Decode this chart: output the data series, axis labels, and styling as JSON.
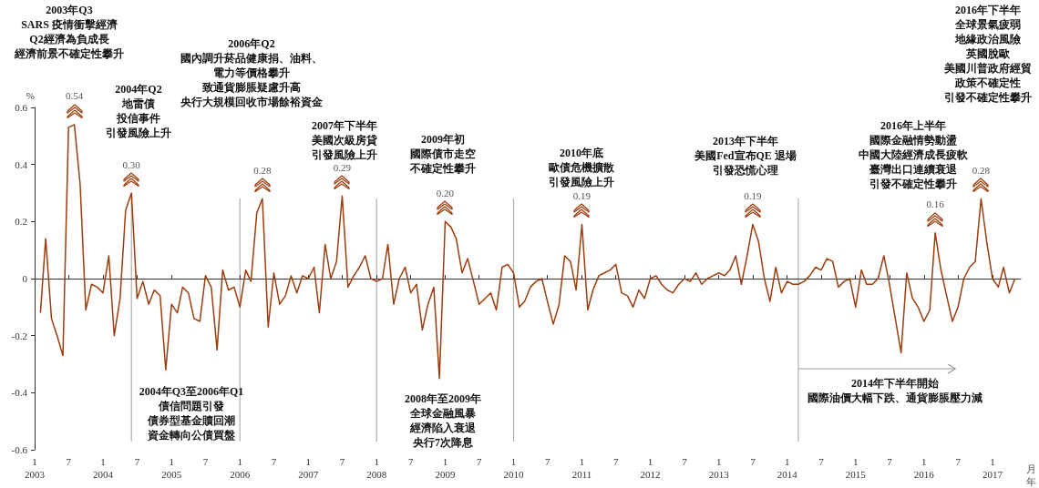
{
  "chart_data": {
    "type": "line",
    "ylabel": "%",
    "xlabel": "月年",
    "x": [
      "2003-02",
      "2003-03",
      "2003-04",
      "2003-05",
      "2003-06",
      "2003-07",
      "2003-08",
      "2003-09",
      "2003-10",
      "2003-11",
      "2003-12",
      "2004-01",
      "2004-02",
      "2004-03",
      "2004-04",
      "2004-05",
      "2004-06",
      "2004-07",
      "2004-08",
      "2004-09",
      "2004-10",
      "2004-11",
      "2004-12",
      "2005-01",
      "2005-02",
      "2005-03",
      "2005-04",
      "2005-05",
      "2005-06",
      "2005-07",
      "2005-08",
      "2005-09",
      "2005-10",
      "2005-11",
      "2005-12",
      "2006-01",
      "2006-02",
      "2006-03",
      "2006-04",
      "2006-05",
      "2006-06",
      "2006-07",
      "2006-08",
      "2006-09",
      "2006-10",
      "2006-11",
      "2006-12",
      "2007-01",
      "2007-02",
      "2007-03",
      "2007-04",
      "2007-05",
      "2007-06",
      "2007-07",
      "2007-08",
      "2007-09",
      "2007-10",
      "2007-11",
      "2007-12",
      "2008-01",
      "2008-02",
      "2008-03",
      "2008-04",
      "2008-05",
      "2008-06",
      "2008-07",
      "2008-08",
      "2008-09",
      "2008-10",
      "2008-11",
      "2008-12",
      "2009-01",
      "2009-02",
      "2009-03",
      "2009-04",
      "2009-05",
      "2009-06",
      "2009-07",
      "2009-08",
      "2009-09",
      "2009-10",
      "2009-11",
      "2009-12",
      "2010-01",
      "2010-02",
      "2010-03",
      "2010-04",
      "2010-05",
      "2010-06",
      "2010-07",
      "2010-08",
      "2010-09",
      "2010-10",
      "2010-11",
      "2010-12",
      "2011-01",
      "2011-02",
      "2011-03",
      "2011-04",
      "2011-05",
      "2011-06",
      "2011-07",
      "2011-08",
      "2011-09",
      "2011-10",
      "2011-11",
      "2011-12",
      "2012-01",
      "2012-02",
      "2012-03",
      "2012-04",
      "2012-05",
      "2012-06",
      "2012-07",
      "2012-08",
      "2012-09",
      "2012-10",
      "2012-11",
      "2012-12",
      "2013-01",
      "2013-02",
      "2013-03",
      "2013-04",
      "2013-05",
      "2013-06",
      "2013-07",
      "2013-08",
      "2013-09",
      "2013-10",
      "2013-11",
      "2013-12",
      "2014-01",
      "2014-02",
      "2014-03",
      "2014-04",
      "2014-05",
      "2014-06",
      "2014-07",
      "2014-08",
      "2014-09",
      "2014-10",
      "2014-11",
      "2014-12",
      "2015-01",
      "2015-02",
      "2015-03",
      "2015-04",
      "2015-05",
      "2015-06",
      "2015-07",
      "2015-08",
      "2015-09",
      "2015-10",
      "2015-11",
      "2015-12",
      "2016-01",
      "2016-02",
      "2016-03",
      "2016-04",
      "2016-05",
      "2016-06",
      "2016-07",
      "2016-08",
      "2016-09",
      "2016-10",
      "2016-11",
      "2016-12",
      "2017-01",
      "2017-02",
      "2017-03",
      "2017-04",
      "2017-05"
    ],
    "series": [
      {
        "color": "#9c3d0e",
        "values": [
          -0.12,
          0.14,
          -0.14,
          -0.2,
          -0.27,
          0.53,
          0.54,
          0.33,
          -0.11,
          -0.02,
          -0.03,
          -0.05,
          0.08,
          -0.2,
          -0.07,
          0.24,
          0.3,
          -0.07,
          -0.01,
          -0.09,
          -0.04,
          -0.06,
          -0.32,
          -0.09,
          -0.12,
          -0.03,
          -0.05,
          -0.14,
          -0.15,
          0.01,
          -0.03,
          -0.25,
          0.03,
          -0.04,
          -0.03,
          -0.1,
          0.03,
          -0.01,
          0.23,
          0.28,
          -0.17,
          0.02,
          -0.09,
          -0.06,
          0.01,
          -0.05,
          0.01,
          0,
          0.04,
          -0.12,
          0.12,
          0,
          0.06,
          0.29,
          -0.03,
          0.01,
          0.04,
          0.08,
          0,
          -0.01,
          0,
          0.12,
          -0.09,
          0,
          0.04,
          -0.05,
          -0.02,
          -0.18,
          -0.09,
          -0.03,
          -0.35,
          0.2,
          0.18,
          0.14,
          0.02,
          0.07,
          -0.01,
          -0.09,
          -0.07,
          -0.05,
          -0.11,
          0.04,
          0.05,
          0.02,
          -0.1,
          -0.08,
          -0.03,
          -0.01,
          0,
          -0.08,
          -0.16,
          -0.09,
          0.08,
          0.06,
          -0.04,
          0.19,
          -0.11,
          -0.04,
          0.01,
          0.02,
          0.03,
          0.05,
          -0.05,
          -0.06,
          -0.1,
          -0.04,
          -0.07,
          0,
          0.01,
          -0.02,
          -0.04,
          -0.05,
          -0.02,
          0,
          -0.01,
          0.02,
          -0.02,
          0,
          0.01,
          0.02,
          0.01,
          0.03,
          0.08,
          -0.02,
          0.08,
          0.19,
          0.13,
          0,
          -0.08,
          0.04,
          -0.05,
          -0.01,
          -0.02,
          -0.02,
          -0.01,
          0.01,
          0.04,
          0.03,
          0.07,
          0.06,
          -0.03,
          -0.01,
          0,
          -0.1,
          0.03,
          -0.02,
          -0.02,
          0,
          0.08,
          -0.02,
          -0.14,
          -0.26,
          0.02,
          -0.07,
          -0.1,
          -0.15,
          -0.11,
          0.16,
          0.03,
          -0.06,
          -0.15,
          -0.1,
          0,
          0.04,
          0.06,
          0.28,
          0.13,
          0,
          -0.03,
          0.04,
          -0.05,
          0
        ],
        "value_labels": [
          null,
          null,
          null,
          null,
          null,
          null,
          "0.54",
          null,
          null,
          null,
          null,
          null,
          null,
          null,
          null,
          null,
          "0.30",
          null,
          null,
          null,
          null,
          null,
          null,
          null,
          null,
          null,
          null,
          null,
          null,
          null,
          null,
          null,
          null,
          null,
          null,
          null,
          null,
          null,
          null,
          "0.28",
          null,
          null,
          null,
          null,
          null,
          null,
          null,
          null,
          null,
          null,
          null,
          null,
          null,
          "0.29",
          null,
          null,
          null,
          null,
          null,
          null,
          null,
          null,
          null,
          null,
          null,
          null,
          null,
          null,
          null,
          null,
          null,
          "0.20",
          null,
          null,
          null,
          null,
          null,
          null,
          null,
          null,
          null,
          null,
          null,
          null,
          null,
          null,
          null,
          null,
          null,
          null,
          null,
          null,
          null,
          null,
          null,
          "0.19",
          null,
          null,
          null,
          null,
          null,
          null,
          null,
          null,
          null,
          null,
          null,
          null,
          null,
          null,
          null,
          null,
          null,
          null,
          null,
          null,
          null,
          null,
          null,
          null,
          null,
          null,
          null,
          null,
          null,
          "0.19",
          null,
          null,
          null,
          null,
          null,
          null,
          null,
          null,
          null,
          null,
          null,
          null,
          null,
          null,
          null,
          null,
          null,
          null,
          null,
          null,
          null,
          null,
          null,
          null,
          null,
          null,
          null,
          null,
          null,
          null,
          null,
          "0.16",
          null,
          null,
          null,
          null,
          null,
          null,
          null,
          "0.28",
          null,
          null,
          null,
          null,
          null,
          null
        ]
      }
    ],
    "xlim": [
      "2003-01",
      "2017-06"
    ],
    "xticks": [
      {
        "value": "2003-01",
        "label": "1\n2003"
      },
      {
        "value": "2003-07",
        "label": "7"
      },
      {
        "value": "2004-01",
        "label": "1\n2004"
      },
      {
        "value": "2004-07",
        "label": "7"
      },
      {
        "value": "2005-01",
        "label": "1\n2005"
      },
      {
        "value": "2005-07",
        "label": "7"
      },
      {
        "value": "2006-01",
        "label": "1\n2006"
      },
      {
        "value": "2006-07",
        "label": "7"
      },
      {
        "value": "2007-01",
        "label": "1\n2007"
      },
      {
        "value": "2007-07",
        "label": "7"
      },
      {
        "value": "2008-01",
        "label": "1\n2008"
      },
      {
        "value": "2008-07",
        "label": "7"
      },
      {
        "value": "2009-01",
        "label": "1\n2009"
      },
      {
        "value": "2009-07",
        "label": "7"
      },
      {
        "value": "2010-01",
        "label": "1\n2010"
      },
      {
        "value": "2010-07",
        "label": "7"
      },
      {
        "value": "2011-01",
        "label": "1\n2011"
      },
      {
        "value": "2011-07",
        "label": "7"
      },
      {
        "value": "2012-01",
        "label": "1\n2012"
      },
      {
        "value": "2012-07",
        "label": "7"
      },
      {
        "value": "2013-01",
        "label": "1\n2013"
      },
      {
        "value": "2013-07",
        "label": "7"
      },
      {
        "value": "2014-01",
        "label": "1\n2014"
      },
      {
        "value": "2014-07",
        "label": "7"
      },
      {
        "value": "2015-01",
        "label": "1\n2015"
      },
      {
        "value": "2015-07",
        "label": "7"
      },
      {
        "value": "2016-01",
        "label": "1\n2016"
      },
      {
        "value": "2016-07",
        "label": "7"
      },
      {
        "value": "2017-01",
        "label": "1\n2017"
      }
    ],
    "ylim": [
      -0.6,
      0.6
    ],
    "yticks": [
      -0.6,
      -0.4,
      -0.2,
      0,
      0.2,
      0.4,
      0.6
    ],
    "ref_lines": [
      {
        "axis": "x",
        "value": "2004-06",
        "color": "#b0b0b0"
      },
      {
        "axis": "x",
        "value": "2006-01",
        "color": "#b0b0b0"
      },
      {
        "axis": "x",
        "value": "2008-01",
        "color": "#b0b0b0"
      },
      {
        "axis": "x",
        "value": "2010-01",
        "color": "#b0b0b0"
      },
      {
        "axis": "x",
        "value": "2014-03",
        "color": "#b0b0b0"
      }
    ],
    "annotations": [
      "2003年Q3SARS 疫情衝擊經濟Q2經濟為負成長經濟前景不確定性攀升",
      "2004年Q2地雷債投信事件引發風險上升",
      "2006年Q2國內調升菸品健康捐、油料、電力等價格攀升致通貨膨脹疑慮升高央行大規模回收市場餘裕資金",
      "2007年下半年美國次級房貸引發風險上升",
      "2009年初國際債市走空不確定性攀升",
      "2010年底歐債危機擴散引發風險上升",
      "2013年下半年美國Fed宣布QE 退場引發恐慌心理",
      "2016年上半年國際金融情勢動盪中國大陸經濟成長疲軟臺灣出口連續衰退引發不確定性攀升",
      "2016年下半年全球景氣疲弱地緣政治風險英國脫歐美國川普政府經貿政策不確定性引發不確定性攀升",
      "2004年Q3至2006年Q1債信問題引發債券型基金贖回潮資金轉向公債買盤",
      "2008年至2009年全球金融風暴經濟陷入衰退央行7次降息",
      "2014年下半年開始國際油價大幅下跌、通貨膨脹壓力減"
    ]
  }
}
